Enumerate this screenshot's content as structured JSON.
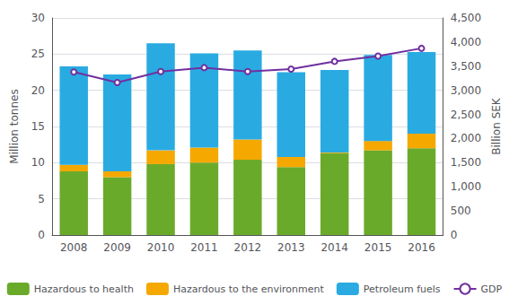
{
  "chart_data": {
    "type": "bar",
    "stacked": true,
    "categories": [
      "2008",
      "2009",
      "2010",
      "2011",
      "2012",
      "2013",
      "2014",
      "2015",
      "2016"
    ],
    "ylabel": "Million tonnes",
    "y2label": "Billion SEK",
    "ylim": [
      0,
      30
    ],
    "yticks": [
      0,
      5,
      10,
      15,
      20,
      25,
      30
    ],
    "y2lim": [
      0,
      4500
    ],
    "y2ticks": [
      0,
      500,
      1000,
      1500,
      2000,
      2500,
      3000,
      3500,
      4000,
      4500
    ],
    "grid": true,
    "legend": "bottom",
    "series": [
      {
        "name": "Hazardous to health",
        "color": "#6aaa2a",
        "values": [
          8.8,
          8.0,
          9.8,
          10.0,
          10.4,
          9.4,
          11.3,
          11.7,
          12.0
        ]
      },
      {
        "name": "Hazardous to the environment",
        "color": "#f5a800",
        "values": [
          0.9,
          0.8,
          1.9,
          2.1,
          2.8,
          1.4,
          0.1,
          1.3,
          2.0
        ]
      },
      {
        "name": "Petroleum fuels",
        "color": "#29abe2",
        "values": [
          13.6,
          13.4,
          14.8,
          13.0,
          12.3,
          11.7,
          11.4,
          11.9,
          11.3
        ]
      },
      {
        "name": "GDP",
        "type": "line",
        "axis": "y2",
        "color": "#7030a0",
        "values": [
          3380,
          3160,
          3390,
          3470,
          3390,
          3440,
          3600,
          3710,
          3870
        ]
      }
    ]
  }
}
